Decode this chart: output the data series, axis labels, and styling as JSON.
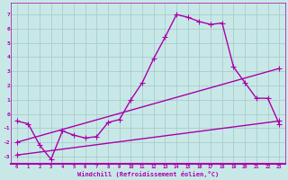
{
  "xlabel": "Windchill (Refroidissement éolien,°C)",
  "xlim": [
    -0.5,
    23.5
  ],
  "ylim": [
    -3.5,
    7.8
  ],
  "yticks": [
    -3,
    -2,
    -1,
    0,
    1,
    2,
    3,
    4,
    5,
    6,
    7
  ],
  "xticks": [
    0,
    1,
    2,
    3,
    4,
    5,
    6,
    7,
    8,
    9,
    10,
    11,
    12,
    13,
    14,
    15,
    16,
    17,
    18,
    19,
    20,
    21,
    22,
    23
  ],
  "bg_color": "#c8e8e8",
  "grid_color": "#aacccc",
  "line_color": "#aa00aa",
  "line1_x": [
    0,
    1,
    2,
    3,
    4,
    5,
    6,
    7,
    8,
    9,
    10,
    11,
    12,
    13,
    14,
    15,
    16,
    17,
    18,
    19,
    20,
    21,
    22,
    23
  ],
  "line1_y": [
    -0.5,
    -0.7,
    -2.2,
    -3.2,
    -1.2,
    -1.5,
    -1.7,
    -1.6,
    -0.6,
    -0.4,
    1.0,
    2.2,
    3.9,
    5.4,
    7.0,
    6.8,
    6.5,
    6.3,
    6.4,
    3.3,
    2.2,
    1.1,
    1.1,
    -0.7
  ],
  "line2_x": [
    0,
    23
  ],
  "line2_y": [
    -2.0,
    3.2
  ],
  "line3_x": [
    0,
    23
  ],
  "line3_y": [
    -2.9,
    -0.5
  ],
  "marker": "+",
  "markersize": 4,
  "linewidth": 1.0
}
